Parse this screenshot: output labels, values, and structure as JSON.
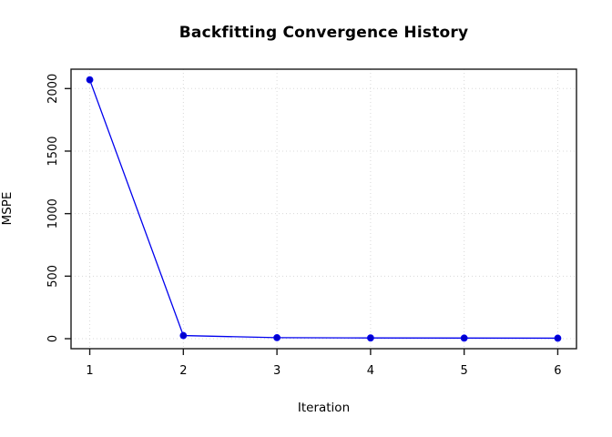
{
  "title": "Backfitting Convergence History",
  "chart_data": {
    "type": "line",
    "series_name": "MSPE",
    "x": [
      1,
      2,
      3,
      4,
      5,
      6
    ],
    "values": [
      2070,
      25,
      8,
      6,
      5,
      4
    ],
    "xlabel": "Iteration",
    "ylabel": "MSPE",
    "x_tick_labels": [
      "1",
      "2",
      "3",
      "4",
      "5",
      "6"
    ],
    "x_tick_values": [
      1,
      2,
      3,
      4,
      5,
      6
    ],
    "y_tick_labels": [
      "0",
      "500",
      "1000",
      "1500",
      "2000"
    ],
    "y_tick_values": [
      0,
      500,
      1000,
      1500,
      2000
    ],
    "xlim": [
      0.8,
      6.2
    ],
    "ylim": [
      -80,
      2155
    ],
    "grid": true,
    "grid_style": "dotted",
    "legend_position": "none",
    "line_color": "#0000EE",
    "point_color": "#0000CC",
    "grid_color": "#D8D8D8",
    "axis_color": "#1a1a1a",
    "background_color": "#FFFFFF"
  }
}
